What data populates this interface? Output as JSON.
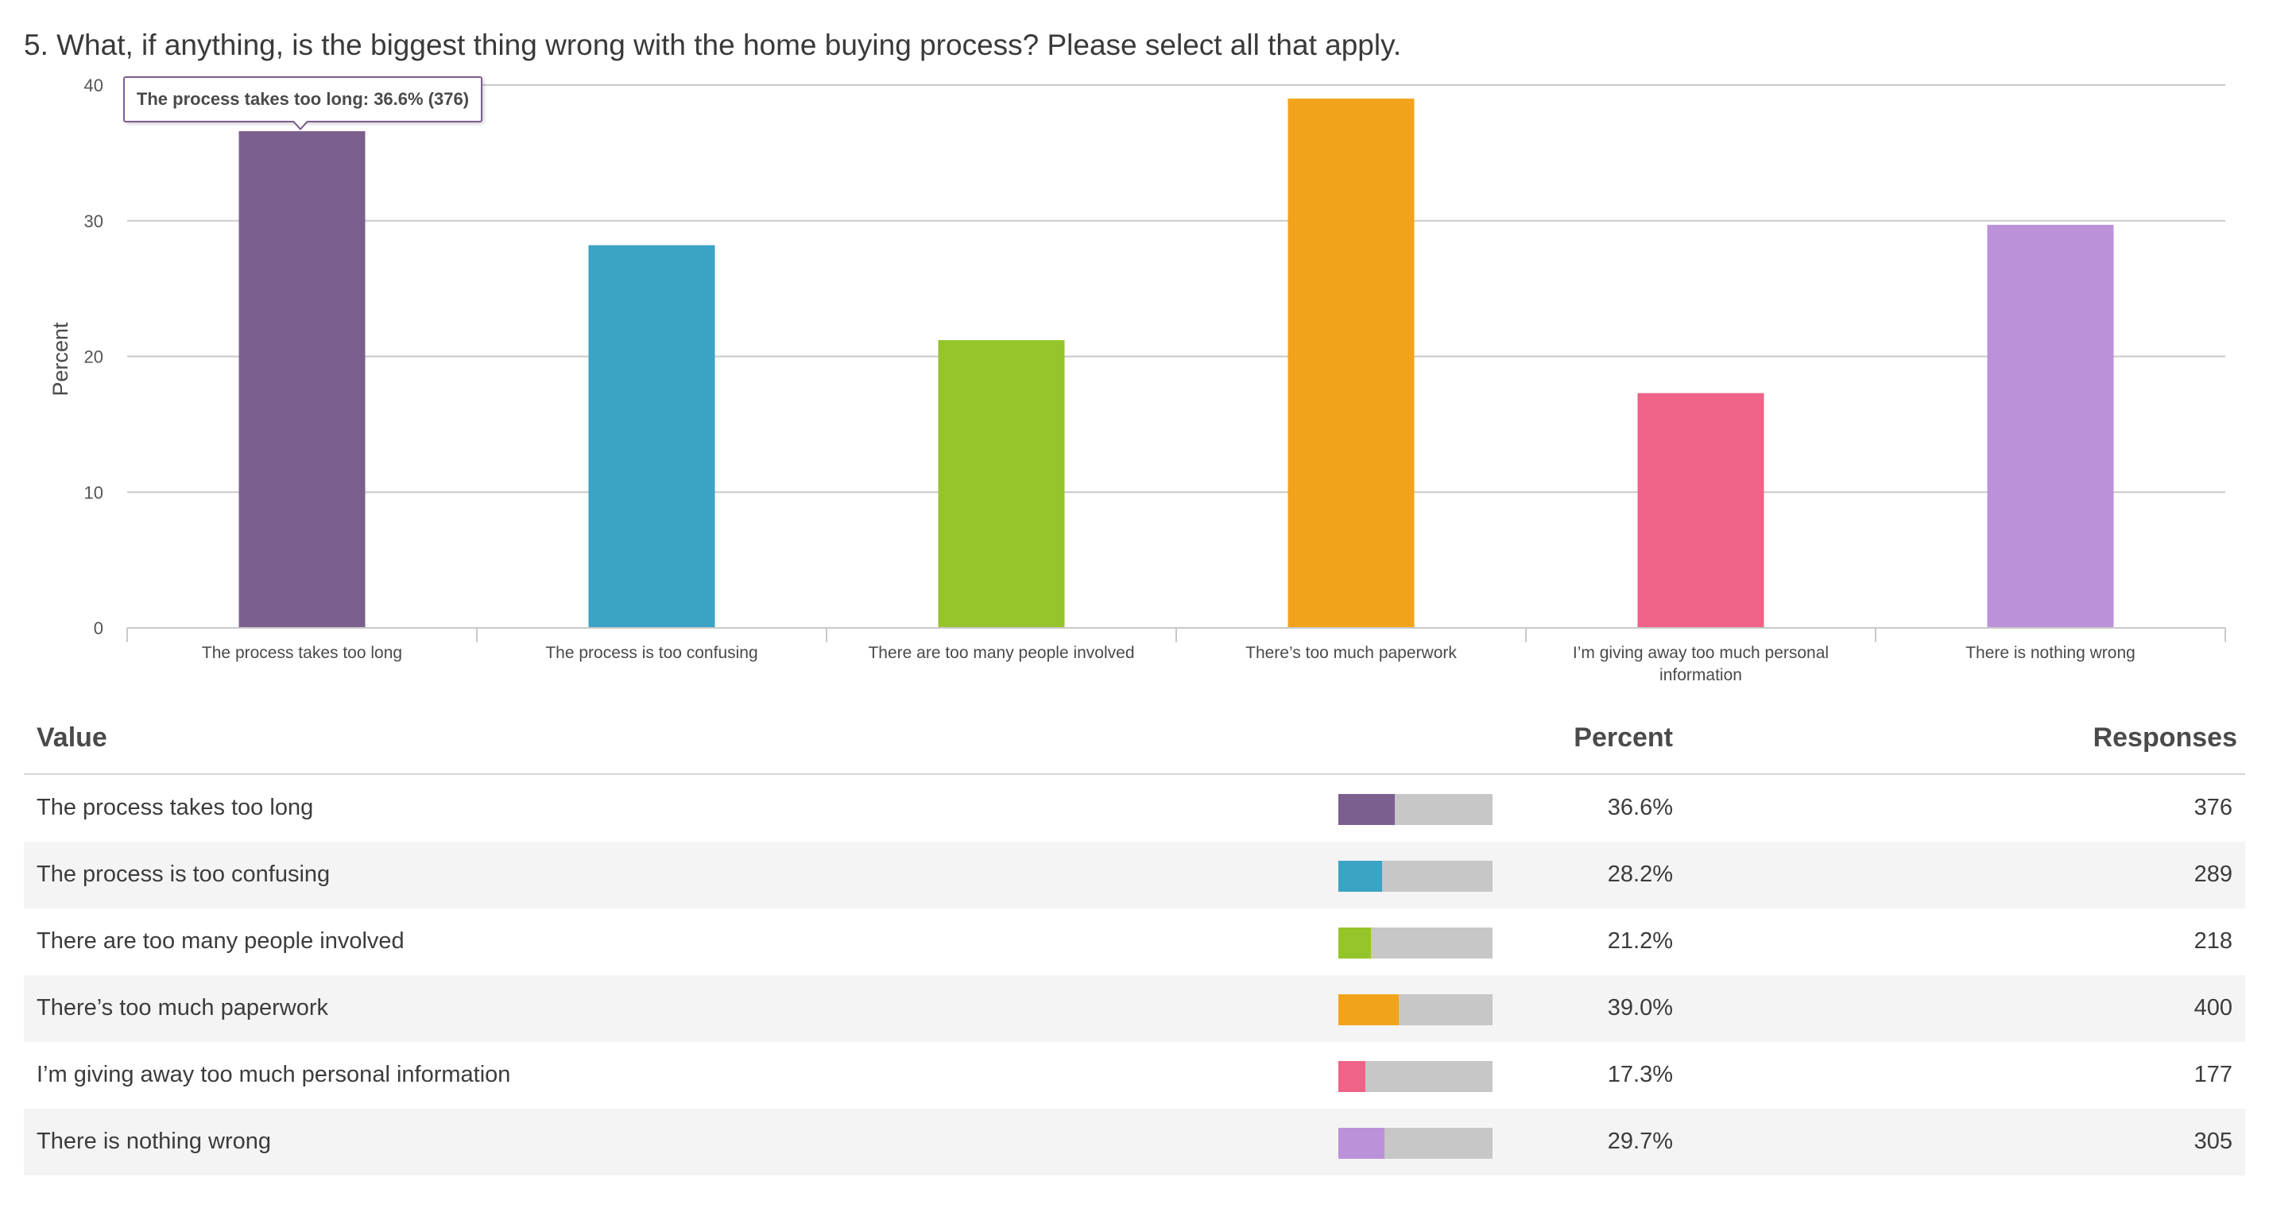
{
  "question": {
    "title": "5. What, if anything, is the biggest thing wrong with the home buying process? Please select all that apply."
  },
  "tooltip": {
    "text": "The process takes too long: 36.6% (376)"
  },
  "chart_data": {
    "type": "bar",
    "ylabel": "Percent",
    "ylim": [
      0,
      40
    ],
    "yticks": [
      0,
      10,
      20,
      30,
      40
    ],
    "grid": true,
    "categories": [
      "The process takes too long",
      "The process is too confusing",
      "There are too many people involved",
      "There’s too much paperwork",
      "I’m giving away too much personal information",
      "There is nothing wrong"
    ],
    "values": [
      36.6,
      28.2,
      21.2,
      39.0,
      17.3,
      29.7
    ],
    "colors": [
      "#7b5f8f",
      "#3ba3c3",
      "#95c52a",
      "#f2a31c",
      "#ef6388",
      "#bb91da"
    ]
  },
  "table": {
    "headers": {
      "value": "Value",
      "percent": "Percent",
      "responses": "Responses"
    },
    "rows": [
      {
        "label": "The process takes too long",
        "percent": "36.6%",
        "responses": "376",
        "fill": 0.366,
        "color": "#7b5f8f"
      },
      {
        "label": "The process is too confusing",
        "percent": "28.2%",
        "responses": "289",
        "fill": 0.282,
        "color": "#3ba3c3"
      },
      {
        "label": "There are too many people involved",
        "percent": "21.2%",
        "responses": "218",
        "fill": 0.212,
        "color": "#95c52a"
      },
      {
        "label": "There’s too much paperwork",
        "percent": "39.0%",
        "responses": "400",
        "fill": 0.39,
        "color": "#f2a31c"
      },
      {
        "label": "I’m giving away too much personal information",
        "percent": "17.3%",
        "responses": "177",
        "fill": 0.173,
        "color": "#ef6388"
      },
      {
        "label": "There is nothing wrong",
        "percent": "29.7%",
        "responses": "305",
        "fill": 0.297,
        "color": "#bb91da"
      }
    ]
  }
}
